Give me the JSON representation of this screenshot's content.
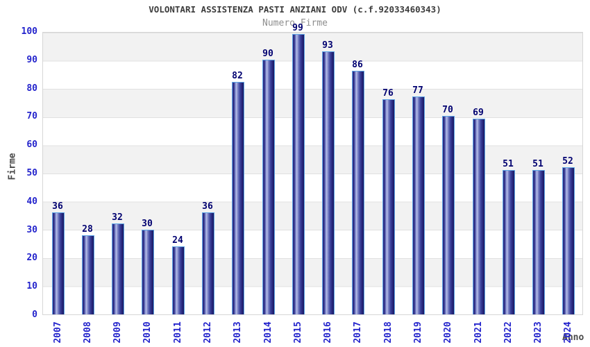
{
  "chart_data": {
    "type": "bar",
    "title": "VOLONTARI ASSISTENZA PASTI ANZIANI ODV (c.f.92033460343)",
    "subtitle": "Numero Firme",
    "xlabel": "Anno",
    "ylabel": "Firme",
    "categories": [
      "2007",
      "2008",
      "2009",
      "2010",
      "2011",
      "2012",
      "2013",
      "2014",
      "2015",
      "2016",
      "2017",
      "2018",
      "2019",
      "2020",
      "2021",
      "2022",
      "2023",
      "2024"
    ],
    "values": [
      36,
      28,
      32,
      30,
      24,
      36,
      82,
      90,
      99,
      93,
      86,
      76,
      77,
      70,
      69,
      51,
      51,
      52
    ],
    "ylim": [
      0,
      100
    ],
    "ytick_step": 10,
    "grid": "horizontal-bands-alternating",
    "legend": "none",
    "colors": {
      "bar_dark": "#1a1a60",
      "bar_light": "#b8c0ea",
      "bar_border": "#5ea6e6",
      "value_label": "#000070",
      "tick_label": "#2424cc",
      "axis_title": "#4a4a4a",
      "title": "#3c3c3c",
      "subtitle": "#8e8e8e",
      "band_gray": "#f2f2f2",
      "band_white": "#ffffff",
      "gridline": "#e0e0e0"
    }
  }
}
